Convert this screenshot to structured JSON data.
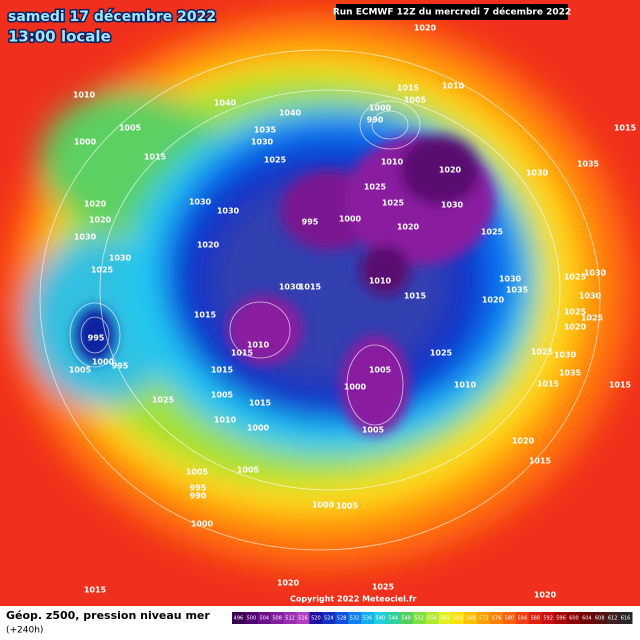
{
  "header": {
    "date": "samedi 17 décembre 2022",
    "time": "13:00 locale",
    "run": "Run ECMWF 12Z du mercredi 7 décembre 2022"
  },
  "isobar_labels": [
    "1010",
    "1005",
    "1000",
    "1015",
    "1040",
    "1040",
    "1035",
    "1030",
    "1025",
    "1005",
    "1000",
    "1010",
    "1020",
    "1015",
    "990",
    "1010",
    "1020",
    "1025",
    "1025",
    "1030",
    "1020",
    "1030",
    "1035",
    "1015",
    "1030",
    "1030",
    "995",
    "1000",
    "1020",
    "1010",
    "1015",
    "1020",
    "1030",
    "1035",
    "1025",
    "1025",
    "1030",
    "1030",
    "1025",
    "1020",
    "1025",
    "1025",
    "1030",
    "1035",
    "1015",
    "1015",
    "1010",
    "1025",
    "1030",
    "1015",
    "1015",
    "1015",
    "1010",
    "1015",
    "1005",
    "1015",
    "1010",
    "1000",
    "1005",
    "1000",
    "1005",
    "1020",
    "1015",
    "1020",
    "1030",
    "1020",
    "1030",
    "1025",
    "995",
    "1005",
    "1000",
    "995",
    "1025",
    "1005",
    "995",
    "990",
    "1005",
    "1000",
    "1005",
    "1000",
    "1020",
    "1025",
    "1015",
    "1020"
  ],
  "colorbar": {
    "ticks": [
      496,
      500,
      504,
      508,
      512,
      516,
      520,
      524,
      528,
      532,
      536,
      540,
      544,
      548,
      552,
      556,
      560,
      564,
      568,
      572,
      576,
      580,
      584,
      588,
      592,
      596,
      600,
      604,
      608,
      612,
      616
    ]
  },
  "footer": {
    "title": "Géop. z500, pression niveau mer",
    "lead_time": "(+240h)",
    "copyright": "Copyright 2022 Meteociel.fr"
  }
}
